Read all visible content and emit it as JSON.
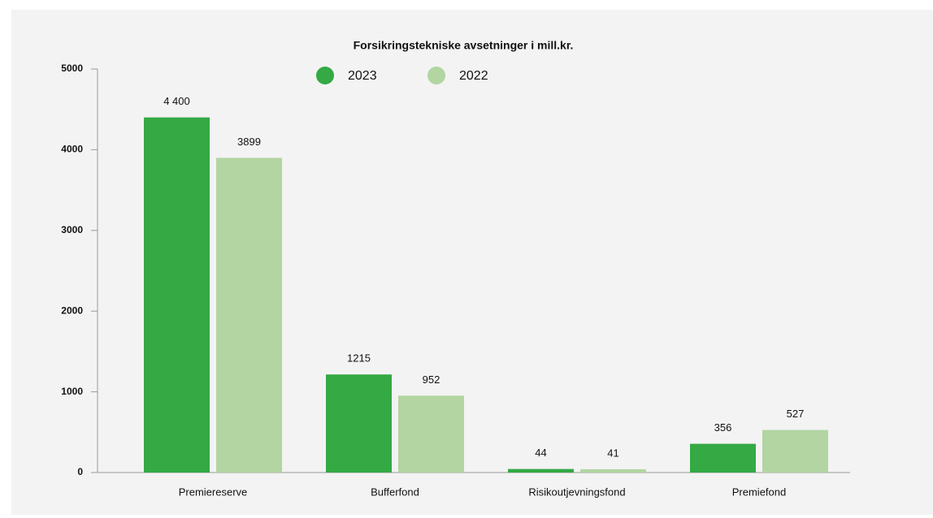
{
  "chart_data": {
    "type": "bar",
    "title": "Forsikringstekniske avsetninger i mill.kr.",
    "categories": [
      "Premiereserve",
      "Bufferfond",
      "Risikoutjevningsfond",
      "Premiefond"
    ],
    "series": [
      {
        "name": "2023",
        "color": "#34a944",
        "values": [
          4400,
          1215,
          44,
          356
        ],
        "value_labels": [
          "4 400",
          "1215",
          "44",
          "356"
        ]
      },
      {
        "name": "2022",
        "color": "#b2d5a2",
        "values": [
          3899,
          952,
          41,
          527
        ]
      }
    ],
    "ylim": [
      0,
      5000
    ],
    "yticks": [
      0,
      1000,
      2000,
      3000,
      4000,
      5000
    ],
    "legend": "top"
  }
}
